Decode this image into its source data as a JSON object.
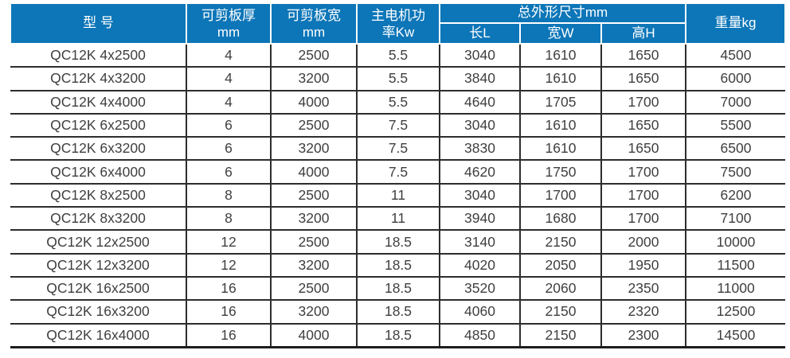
{
  "colors": {
    "header_bg": "#0d76b8",
    "header_text": "#ffffff",
    "body_text": "#3f3f3f",
    "grid_line": "#2d2d2d"
  },
  "table": {
    "headers": {
      "model": "型 号",
      "thickness_line1": "可剪板厚",
      "thickness_line2": "mm",
      "plate_width_line1": "可剪板宽",
      "plate_width_line2": "mm",
      "power_line1": "主电机功",
      "power_line2": "率Kw",
      "dimensions_group": "总外形尺寸mm",
      "length": "长L",
      "width": "宽W",
      "height": "高H",
      "weight": "重量kg"
    },
    "rows": [
      [
        "QC12K 4x2500",
        "4",
        "2500",
        "5.5",
        "3040",
        "1610",
        "1650",
        "4500"
      ],
      [
        "QC12K 4x3200",
        "4",
        "3200",
        "5.5",
        "3840",
        "1610",
        "1650",
        "6000"
      ],
      [
        "QC12K 4x4000",
        "4",
        "4000",
        "5.5",
        "4640",
        "1705",
        "1700",
        "7000"
      ],
      [
        "QC12K 6x2500",
        "6",
        "2500",
        "7.5",
        "3040",
        "1610",
        "1650",
        "5500"
      ],
      [
        "QC12K 6x3200",
        "6",
        "3200",
        "7.5",
        "3830",
        "1610",
        "1650",
        "6500"
      ],
      [
        "QC12K 6x4000",
        "6",
        "4000",
        "7.5",
        "4620",
        "1750",
        "1700",
        "7500"
      ],
      [
        "QC12K 8x2500",
        "8",
        "2500",
        "11",
        "3040",
        "1700",
        "1700",
        "6200"
      ],
      [
        "QC12K 8x3200",
        "8",
        "3200",
        "11",
        "3940",
        "1680",
        "1700",
        "7100"
      ],
      [
        "QC12K 12x2500",
        "12",
        "2500",
        "18.5",
        "3140",
        "2150",
        "2000",
        "10000"
      ],
      [
        "QC12K 12x3200",
        "12",
        "3200",
        "18.5",
        "4020",
        "2050",
        "1950",
        "11500"
      ],
      [
        "QC12K 16x2500",
        "16",
        "2500",
        "18.5",
        "3520",
        "2060",
        "2350",
        "11000"
      ],
      [
        "QC12K 16x3200",
        "16",
        "3200",
        "18.5",
        "4060",
        "2150",
        "2320",
        "12500"
      ],
      [
        "QC12K 16x4000",
        "16",
        "4000",
        "18.5",
        "4850",
        "2150",
        "2300",
        "14500"
      ]
    ]
  }
}
